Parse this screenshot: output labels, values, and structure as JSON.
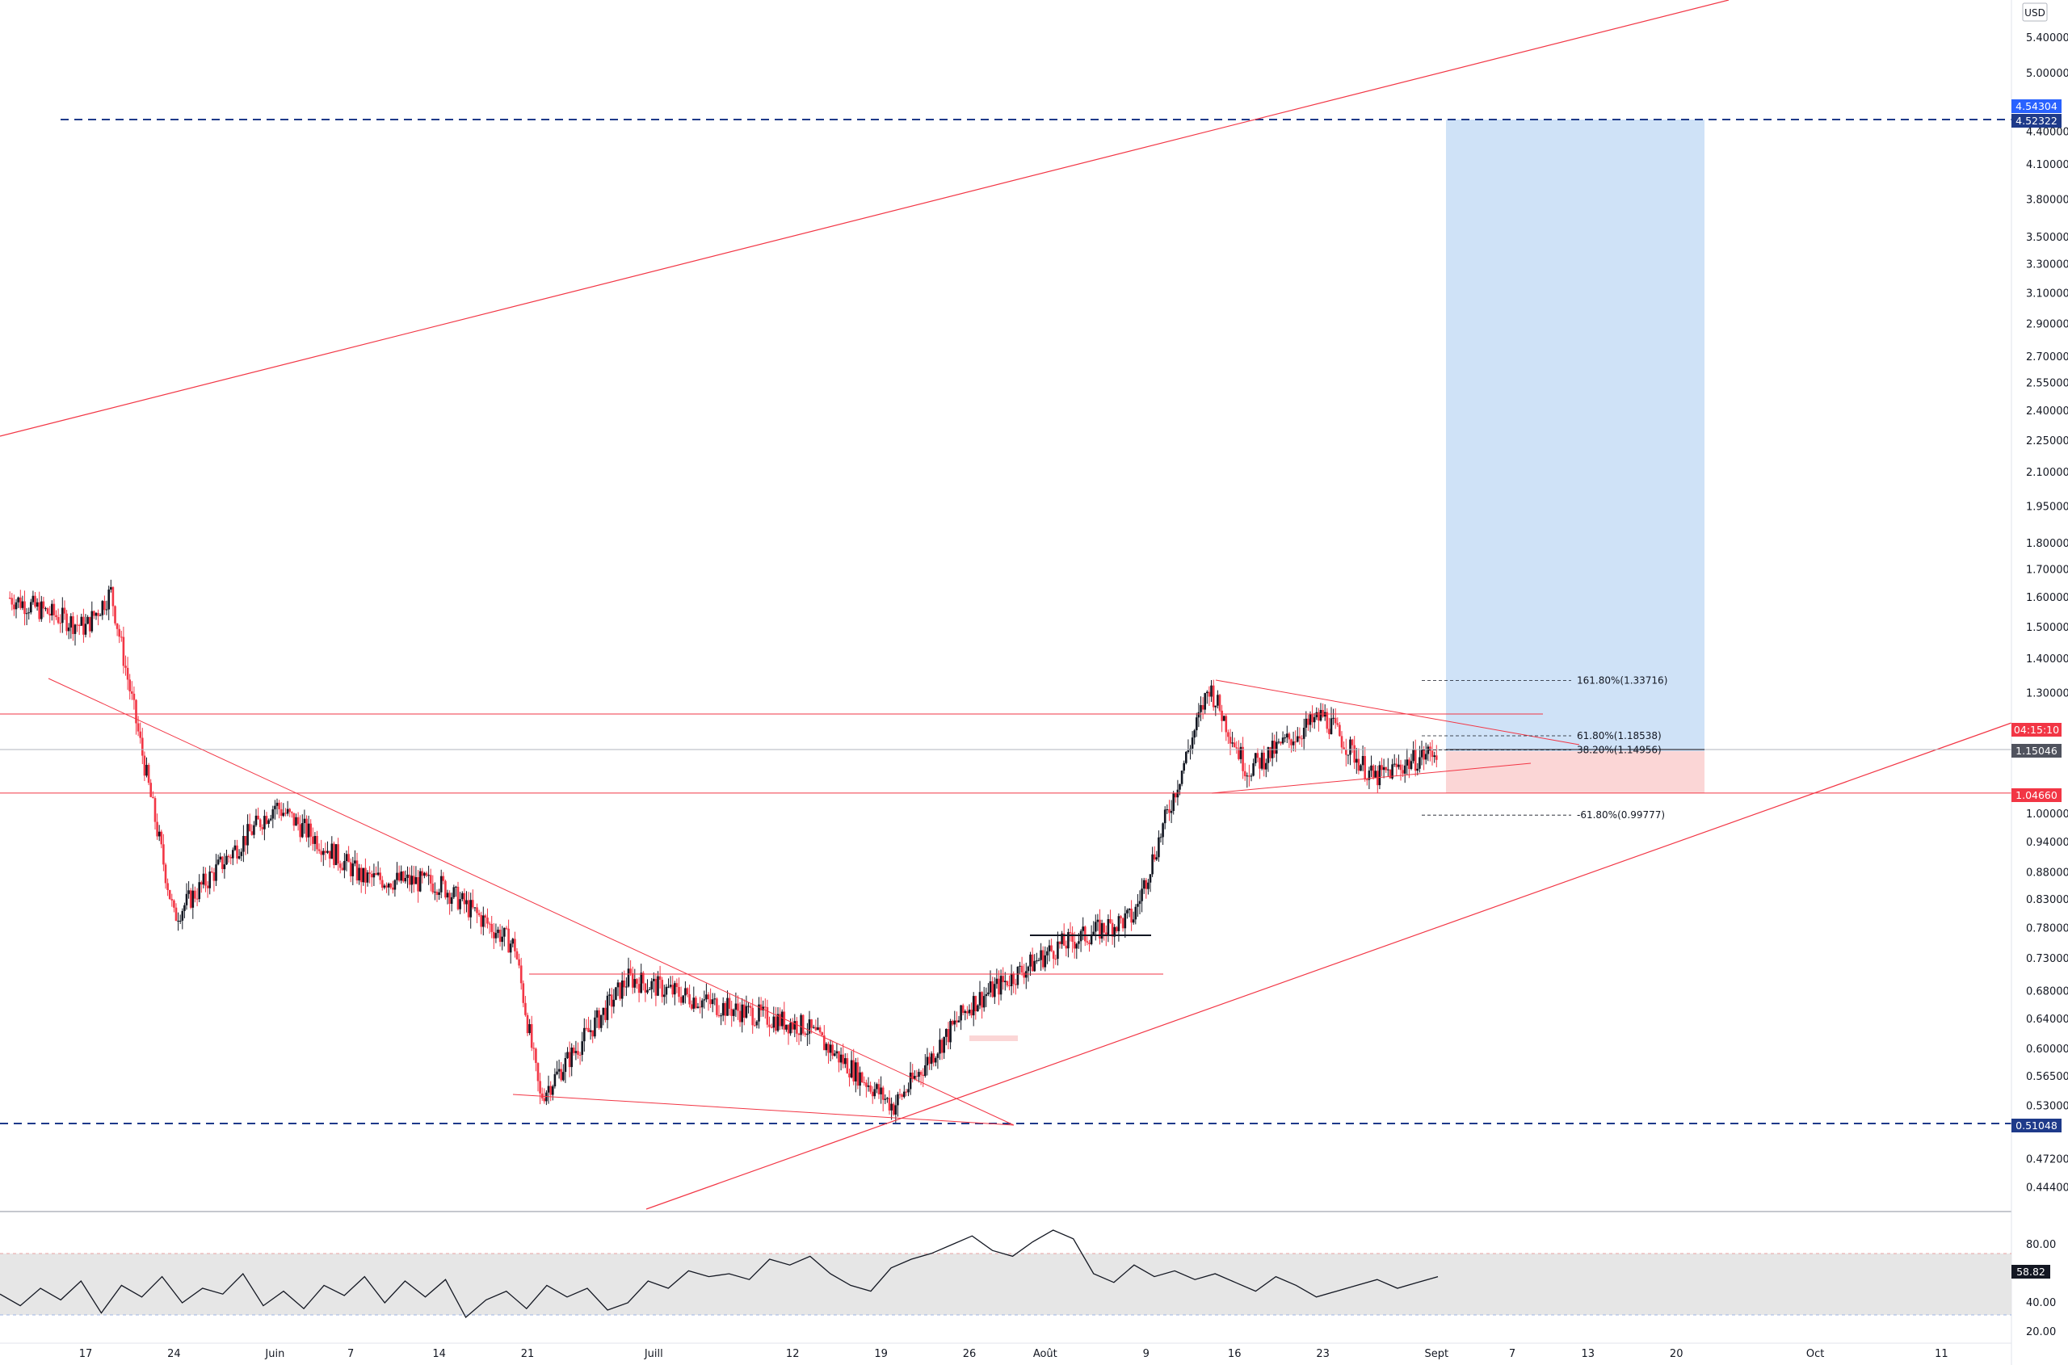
{
  "chart_data": [
    {
      "type": "line",
      "title": "",
      "currency": "USD",
      "scale": "log",
      "ylim": [
        0.42,
        5.9
      ],
      "y_ticks": [
        "5.40000",
        "5.00000",
        "4.40000",
        "4.10000",
        "3.80000",
        "3.50000",
        "3.30000",
        "3.10000",
        "2.90000",
        "2.70000",
        "2.55000",
        "2.40000",
        "2.25000",
        "2.10000",
        "1.95000",
        "1.80000",
        "1.70000",
        "1.60000",
        "1.50000",
        "1.40000",
        "1.30000",
        "1.00000",
        "0.94000",
        "0.88000",
        "0.83000",
        "0.78000",
        "0.73000",
        "0.68000",
        "0.64000",
        "0.60000",
        "0.56500",
        "0.53000",
        "0.47200",
        "0.44400"
      ],
      "x_ticks": [
        "17",
        "24",
        "Juin",
        "7",
        "14",
        "21",
        "Juill",
        "12",
        "19",
        "26",
        "Août",
        "9",
        "16",
        "23",
        "Sept",
        "7",
        "13",
        "20",
        "Oct",
        "11"
      ],
      "x": [
        "2021-05-11",
        "2021-05-17",
        "2021-05-19",
        "2021-05-24",
        "2021-06-01",
        "2021-06-08",
        "2021-06-14",
        "2021-06-20",
        "2021-06-22",
        "2021-06-29",
        "2021-07-06",
        "2021-07-13",
        "2021-07-20",
        "2021-07-26",
        "2021-08-02",
        "2021-08-08",
        "2021-08-14",
        "2021-08-17",
        "2021-08-23",
        "2021-08-27",
        "2021-09-01"
      ],
      "series": [
        {
          "name": "",
          "values": [
            1.6,
            1.5,
            1.62,
            0.8,
            1.02,
            0.87,
            0.86,
            0.75,
            0.54,
            0.7,
            0.66,
            0.63,
            0.53,
            0.66,
            0.75,
            0.8,
            1.32,
            1.1,
            1.24,
            1.08,
            1.15
          ]
        }
      ],
      "price_labels": {
        "upper_target_a": "4.54304",
        "upper_target_b": "4.52322",
        "countdown": "04:15:10",
        "current_price": "1.15046",
        "stop": "1.04660",
        "lower_support": "0.51048"
      },
      "fibonacci": [
        {
          "label": "161.80%(1.33716)",
          "value": 1.33716
        },
        {
          "label": "61.80%(1.18538)",
          "value": 1.18538
        },
        {
          "label": "38.20%(1.14956)",
          "value": 1.14956
        },
        {
          "label": "-61.80%(0.99777)",
          "value": 0.99777
        }
      ],
      "position": {
        "entry": 1.15046,
        "target": 4.52322,
        "stop": 1.0466
      },
      "colors": {
        "up": "#131722",
        "down": "#f23645",
        "trend": "#f23645",
        "support_dash": "#1e3a8a",
        "target_zone": "#cfe2f7",
        "stop_zone": "#fbd6d6",
        "badge_blue": "#2962ff",
        "badge_navy": "#1e3a8a",
        "badge_red": "#f23645",
        "badge_gray": "#50535e"
      }
    },
    {
      "type": "line",
      "title": "",
      "ylim": [
        15,
        100
      ],
      "y_ticks": [
        "80.00",
        "40.00",
        "20.00"
      ],
      "band": [
        30,
        70
      ],
      "current": "58.82",
      "series": [
        {
          "name": "",
          "values": [
            46,
            38,
            50,
            42,
            55,
            33,
            52,
            44,
            58,
            40,
            50,
            46,
            60,
            38,
            48,
            36,
            52,
            45,
            58,
            40,
            55,
            44,
            56,
            30,
            42,
            48,
            36,
            52,
            44,
            50,
            35,
            40,
            55,
            50,
            62,
            58,
            60,
            56,
            70,
            66,
            72,
            60,
            52,
            48,
            64,
            70,
            74,
            80,
            86,
            76,
            72,
            82,
            90,
            84,
            60,
            54,
            66,
            58,
            62,
            56,
            60,
            54,
            48,
            58,
            52,
            44,
            48,
            52,
            56,
            50,
            54,
            58
          ]
        }
      ]
    }
  ]
}
